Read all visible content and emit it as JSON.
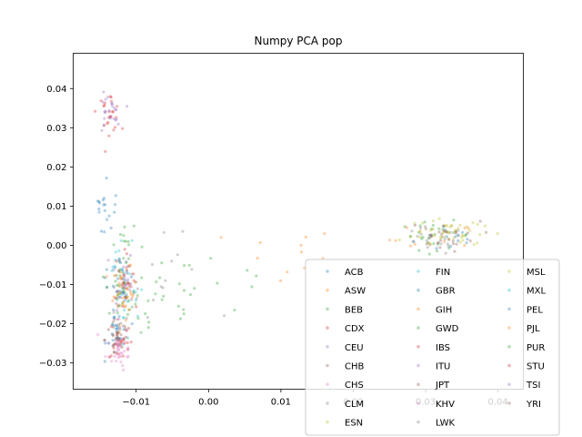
{
  "chart_data": {
    "type": "scatter",
    "title": "Numpy PCA pop",
    "xlabel": "",
    "ylabel": "",
    "xlim": [
      -0.0187,
      0.0435
    ],
    "ylim": [
      -0.0367,
      0.049
    ],
    "xticks": [
      -0.01,
      0.0,
      0.01,
      0.02,
      0.03,
      0.04
    ],
    "xtick_labels": [
      "−0.01",
      "0.00",
      "0.01",
      "0.02",
      "0.03",
      "0.04"
    ],
    "yticks": [
      -0.03,
      -0.02,
      -0.01,
      0.0,
      0.01,
      0.02,
      0.03,
      0.04
    ],
    "ytick_labels": [
      "−0.03",
      "−0.02",
      "−0.01",
      "0.00",
      "0.01",
      "0.02",
      "0.03",
      "0.04"
    ],
    "grid": false,
    "legend_position": "lower-right",
    "legend_columns": 3,
    "marker_alpha": 0.35,
    "series": [
      {
        "name": "ACB",
        "color": "#1f77b4",
        "clusters": [
          [
            0.0335,
            0.002,
            0.0025,
            0.002,
            14
          ],
          [
            -0.0138,
            0.005,
            0.0008,
            0.006,
            14
          ],
          [
            -0.012,
            -0.015,
            0.0007,
            0.004,
            6
          ]
        ]
      },
      {
        "name": "ASW",
        "color": "#ff7f0e",
        "clusters": [
          [
            0.031,
            0.0015,
            0.003,
            0.002,
            10
          ],
          [
            -0.012,
            -0.011,
            0.0008,
            0.004,
            8
          ],
          [
            0.01,
            -0.003,
            0.004,
            0.004,
            12
          ]
        ]
      },
      {
        "name": "BEB",
        "color": "#2ca02c",
        "clusters": [
          [
            -0.0118,
            -0.013,
            0.0008,
            0.0035,
            18
          ],
          [
            -0.007,
            -0.016,
            0.003,
            0.004,
            14
          ],
          [
            0.005,
            -0.012,
            0.004,
            0.004,
            6
          ]
        ]
      },
      {
        "name": "CDX",
        "color": "#d62728",
        "clusters": [
          [
            -0.0122,
            -0.024,
            0.0008,
            0.003,
            20
          ]
        ]
      },
      {
        "name": "CEU",
        "color": "#9467bd",
        "clusters": [
          [
            -0.012,
            -0.007,
            0.0008,
            0.003,
            16
          ]
        ]
      },
      {
        "name": "CHB",
        "color": "#8c564b",
        "clusters": [
          [
            -0.0124,
            -0.022,
            0.0008,
            0.003,
            20
          ]
        ]
      },
      {
        "name": "CHS",
        "color": "#e377c2",
        "clusters": [
          [
            -0.0125,
            -0.026,
            0.0008,
            0.0028,
            20
          ]
        ]
      },
      {
        "name": "CLM",
        "color": "#7f7f7f",
        "clusters": [
          [
            -0.011,
            -0.012,
            0.0015,
            0.005,
            14
          ],
          [
            -0.006,
            -0.008,
            0.003,
            0.005,
            10
          ]
        ]
      },
      {
        "name": "ESN",
        "color": "#bcbd22",
        "clusters": [
          [
            0.033,
            0.0035,
            0.0025,
            0.0018,
            26
          ]
        ]
      },
      {
        "name": "FIN",
        "color": "#17becf",
        "clusters": [
          [
            -0.0122,
            -0.004,
            0.0008,
            0.003,
            14
          ]
        ]
      },
      {
        "name": "GBR",
        "color": "#1f77b4",
        "clusters": [
          [
            -0.012,
            -0.009,
            0.0008,
            0.003,
            14
          ]
        ]
      },
      {
        "name": "GIH",
        "color": "#ff7f0e",
        "clusters": [
          [
            -0.0115,
            -0.012,
            0.0008,
            0.003,
            18
          ]
        ]
      },
      {
        "name": "GWD",
        "color": "#2ca02c",
        "clusters": [
          [
            0.0315,
            0.0025,
            0.0025,
            0.0018,
            24
          ],
          [
            -0.0118,
            0.001,
            0.0008,
            0.003,
            8
          ]
        ]
      },
      {
        "name": "IBS",
        "color": "#d62728",
        "clusters": [
          [
            -0.0118,
            -0.008,
            0.0008,
            0.003,
            16
          ]
        ]
      },
      {
        "name": "ITU",
        "color": "#9467bd",
        "clusters": [
          [
            -0.0115,
            -0.013,
            0.0008,
            0.003,
            18
          ]
        ]
      },
      {
        "name": "JPT",
        "color": "#8c564b",
        "clusters": [
          [
            -0.0127,
            -0.024,
            0.0008,
            0.003,
            20
          ]
        ]
      },
      {
        "name": "KHV",
        "color": "#e377c2",
        "clusters": [
          [
            -0.012,
            -0.027,
            0.0008,
            0.0025,
            18
          ]
        ]
      },
      {
        "name": "LWK",
        "color": "#7f7f7f",
        "clusters": [
          [
            0.0305,
            0.001,
            0.0025,
            0.0018,
            22
          ]
        ]
      },
      {
        "name": "MSL",
        "color": "#bcbd22",
        "clusters": [
          [
            0.033,
            0.003,
            0.0025,
            0.0018,
            22
          ]
        ]
      },
      {
        "name": "MXL",
        "color": "#17becf",
        "clusters": [
          [
            -0.0115,
            -0.017,
            0.0015,
            0.004,
            16
          ]
        ]
      },
      {
        "name": "PEL",
        "color": "#1f77b4",
        "clusters": [
          [
            -0.0125,
            -0.022,
            0.0008,
            0.003,
            18
          ],
          [
            -0.0145,
            0.011,
            0.0006,
            0.001,
            8
          ]
        ]
      },
      {
        "name": "PJL",
        "color": "#ff7f0e",
        "clusters": [
          [
            -0.0118,
            -0.011,
            0.0008,
            0.003,
            18
          ]
        ]
      },
      {
        "name": "PUR",
        "color": "#2ca02c",
        "clusters": [
          [
            -0.0112,
            -0.007,
            0.0015,
            0.005,
            16
          ],
          [
            -0.004,
            -0.012,
            0.004,
            0.005,
            10
          ]
        ]
      },
      {
        "name": "STU",
        "color": "#d62728",
        "clusters": [
          [
            -0.0138,
            0.034,
            0.0008,
            0.0025,
            24
          ]
        ]
      },
      {
        "name": "TSI",
        "color": "#9467bd",
        "clusters": [
          [
            -0.0138,
            0.0335,
            0.0008,
            0.0025,
            24
          ]
        ]
      },
      {
        "name": "YRI",
        "color": "#8c564b",
        "clusters": [
          [
            0.0325,
            0.0025,
            0.0025,
            0.0018,
            24
          ]
        ]
      }
    ]
  }
}
